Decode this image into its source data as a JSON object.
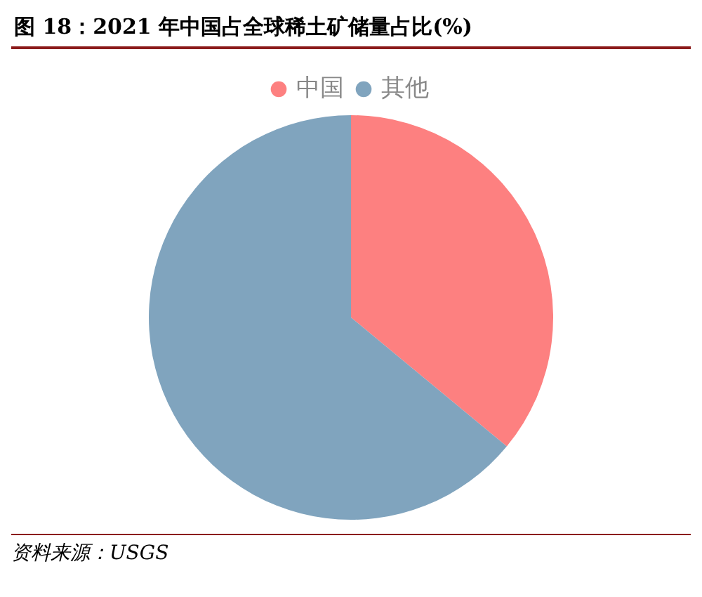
{
  "chart_data": {
    "type": "pie",
    "title": "图 18：2021 年中国占全球稀土矿储量占比(%)",
    "categories": [
      "中国",
      "其他"
    ],
    "values": [
      36,
      64
    ],
    "colors": [
      "#fd8080",
      "#80a4be"
    ],
    "legend": "top",
    "annotations": [
      "资料来源：USGS"
    ]
  }
}
